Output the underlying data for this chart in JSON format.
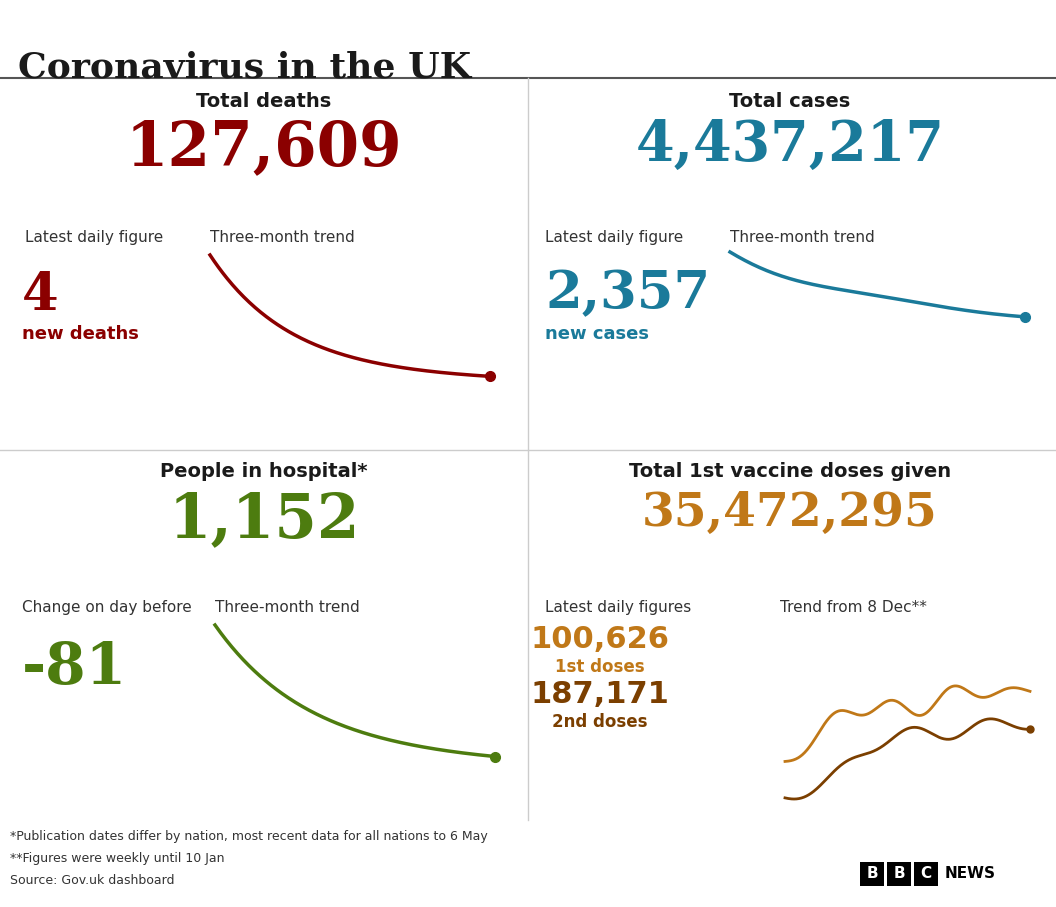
{
  "title": "Coronavirus in the UK",
  "bg_color": "#ffffff",
  "title_color": "#1a1a1a",
  "top_left": {
    "header": "Total deaths",
    "total": "127,609",
    "total_color": "#8b0000",
    "label1": "Latest daily figure",
    "label2": "Three-month trend",
    "daily_value": "4",
    "daily_label": "new deaths",
    "daily_color": "#8b0000",
    "trend_color": "#8b0000"
  },
  "top_right": {
    "header": "Total cases",
    "total": "4,437,217",
    "total_color": "#1a7a9a",
    "label1": "Latest daily figure",
    "label2": "Three-month trend",
    "daily_value": "2,357",
    "daily_label": "new cases",
    "daily_color": "#1a7a9a",
    "trend_color": "#1a7a9a"
  },
  "bottom_left": {
    "header": "People in hospital*",
    "total": "1,152",
    "total_color": "#4d7c0f",
    "label1": "Change on day before",
    "label2": "Three-month trend",
    "daily_value": "-81",
    "daily_color": "#4d7c0f",
    "trend_color": "#4d7c0f"
  },
  "bottom_right": {
    "header": "Total 1st vaccine doses given",
    "total": "35,472,295",
    "total_color": "#c07818",
    "label1": "Latest daily figures",
    "label2": "Trend from 8 Dec**",
    "val1": "100,626",
    "lbl1": "1st doses",
    "color1": "#c07818",
    "val2": "187,171",
    "lbl2": "2nd doses",
    "color2": "#7b3f00"
  },
  "footnotes": [
    "*Publication dates differ by nation, most recent data for all nations to 6 May",
    "**Figures were weekly until 10 Jan",
    "Source: Gov.uk dashboard"
  ]
}
